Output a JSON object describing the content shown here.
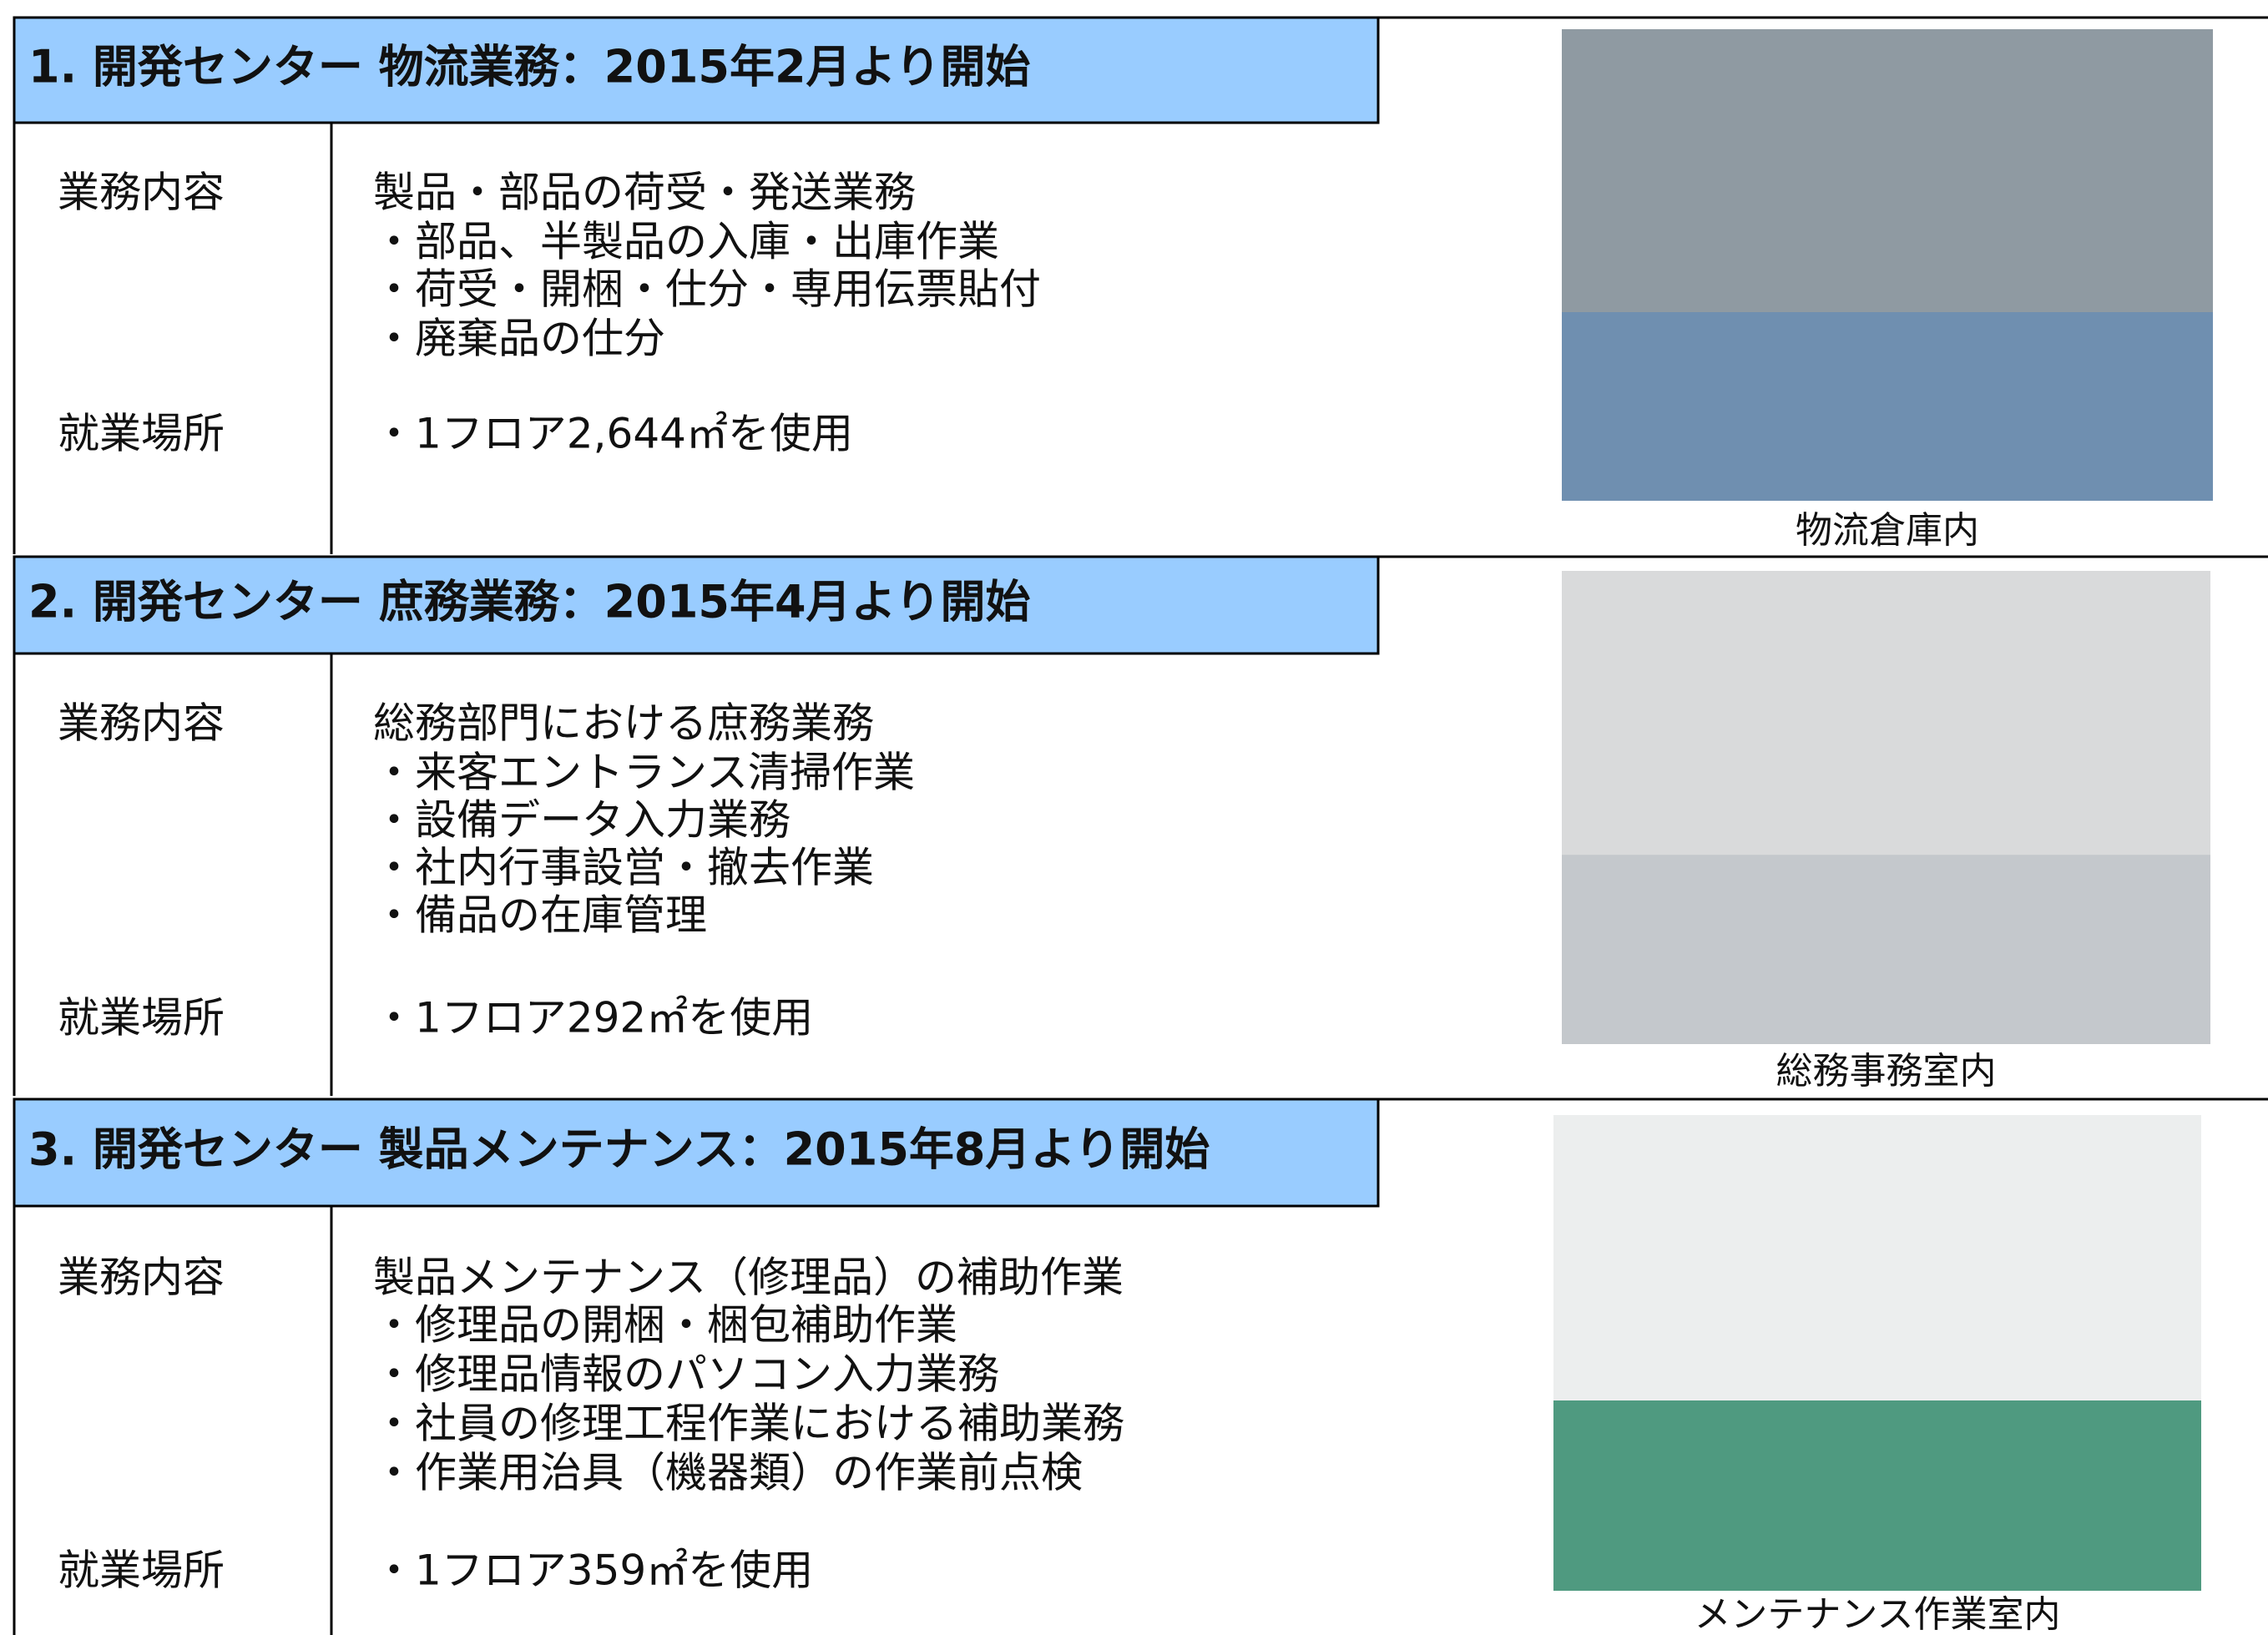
{
  "sections": [
    {
      "header": "1. 開発センター 物流業務：2015年2月より開始",
      "duties_label": "業務内容",
      "duties": [
        "製品・部品の荷受・発送業務",
        "・部品、半製品の入庫・出庫作業",
        "・荷受・開梱・仕分・専用伝票貼付",
        "・廃棄品の仕分"
      ],
      "place_label": "就業場所",
      "place": "・1フロア2,644㎡を使用",
      "photo_caption": "物流倉庫内"
    },
    {
      "header": "2. 開発センター 庶務業務：2015年4月より開始",
      "duties_label": "業務内容",
      "duties": [
        "総務部門における庶務業務",
        "・来客エントランス清掃作業",
        "・設備データ入力業務",
        "・社内行事設営・撤去作業",
        "・備品の在庫管理"
      ],
      "place_label": "就業場所",
      "place": "・1フロア292㎡を使用",
      "photo_caption": "総務事務室内"
    },
    {
      "header": "3. 開発センター 製品メンテナンス：2015年8月より開始",
      "duties_label": "業務内容",
      "duties": [
        "製品メンテナンス（修理品）の補助作業",
        "・修理品の開梱・梱包補助作業",
        "・修理品情報のパソコン入力業務",
        "・社員の修理工程作業における補助業務",
        "・作業用治具（機器類）の作業前点検"
      ],
      "place_label": "就業場所",
      "place": "・1フロア359㎡を使用",
      "photo_caption": "メンテナンス作業室内"
    }
  ]
}
